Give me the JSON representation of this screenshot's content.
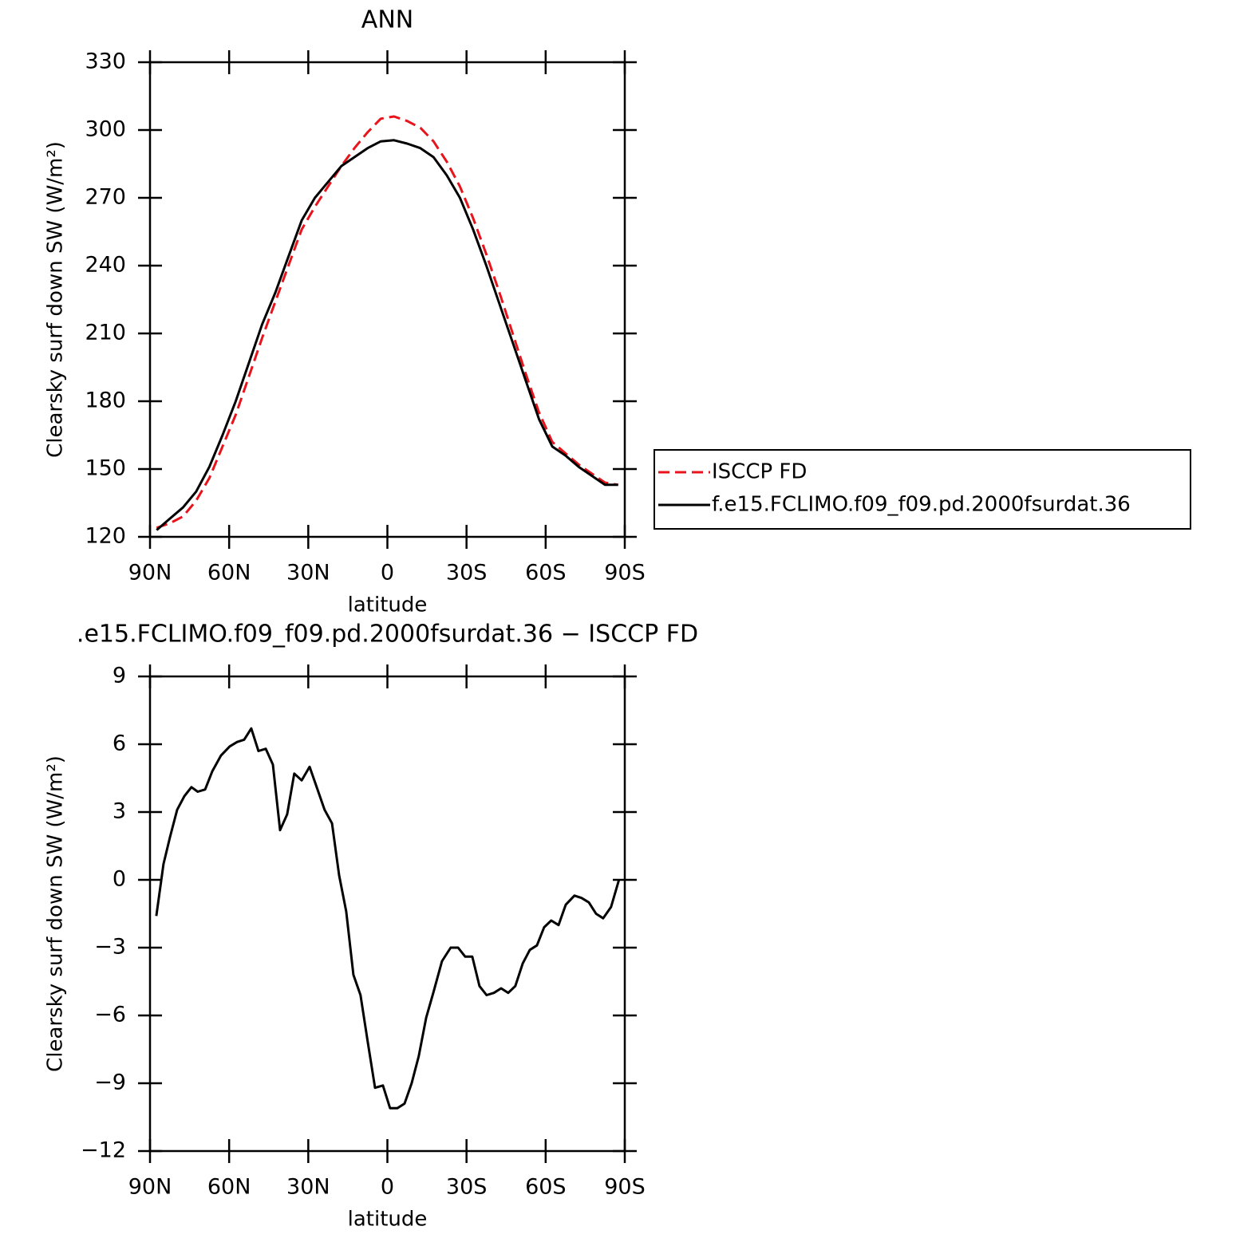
{
  "chart_data": [
    {
      "type": "line",
      "title": "ANN",
      "xlabel": "latitude",
      "ylabel": "Clearsky surf down SW (W/m²)",
      "x": [
        87.5,
        82.5,
        77.5,
        72.5,
        67.5,
        62.5,
        57.5,
        52.5,
        47.5,
        42.5,
        37.5,
        32.5,
        27.5,
        22.5,
        17.5,
        12.5,
        7.5,
        2.5,
        -2.5,
        -7.5,
        -12.5,
        -17.5,
        -22.5,
        -27.5,
        -32.5,
        -37.5,
        -42.5,
        -47.5,
        -52.5,
        -57.5,
        -62.5,
        -67.5,
        -72.5,
        -77.5,
        -82.5,
        -87.5
      ],
      "series": [
        {
          "name": "ISCCP FD",
          "color": "#e8141c",
          "dash": true,
          "values": [
            124,
            126,
            129,
            136,
            146,
            160,
            174,
            191,
            208,
            224,
            240,
            256,
            266,
            275,
            284,
            292,
            299,
            305,
            306,
            304,
            301,
            295,
            286,
            275,
            261,
            245,
            228,
            210,
            192,
            175,
            162,
            157,
            152,
            148,
            144,
            143
          ]
        },
        {
          "name": "f.e15.FCLIMO.f09_f09.pd.2000fsurdat.36",
          "color": "#000000",
          "dash": false,
          "values": [
            123,
            128,
            133,
            140,
            151,
            165,
            180,
            197,
            214,
            228,
            244,
            260,
            270,
            277,
            284,
            288,
            292,
            295,
            295.5,
            294,
            292,
            288,
            280,
            270,
            256,
            240,
            223,
            206,
            189,
            172,
            160,
            156,
            151,
            147,
            143,
            143
          ]
        }
      ],
      "xlim": [
        90,
        -90
      ],
      "xticks": [
        {
          "value": 90,
          "label": "90N"
        },
        {
          "value": 60,
          "label": "60N"
        },
        {
          "value": 30,
          "label": "30N"
        },
        0,
        {
          "value": -30,
          "label": "30S"
        },
        {
          "value": -60,
          "label": "60S"
        },
        {
          "value": -90,
          "label": "90S"
        }
      ],
      "ylim": [
        120,
        330
      ],
      "yticks": [
        120,
        150,
        180,
        210,
        240,
        270,
        300,
        330
      ],
      "legend": "right"
    },
    {
      "type": "line",
      "title": ".e15.FCLIMO.f09_f09.pd.2000fsurdat.36 − ISCCP FD",
      "xlabel": "latitude",
      "ylabel": "Clearsky surf down SW (W/m²)",
      "x": [
        87.6,
        84.9,
        82.4,
        79.7,
        77.0,
        74.3,
        71.9,
        69.1,
        66.4,
        63.1,
        59.8,
        57.0,
        54.3,
        51.6,
        48.9,
        46.1,
        43.4,
        40.7,
        38.0,
        35.3,
        32.5,
        29.5,
        26.8,
        23.8,
        21.0,
        18.3,
        15.6,
        12.9,
        10.2,
        7.4,
        4.7,
        1.7,
        -1.0,
        -3.8,
        -6.5,
        -9.2,
        -11.9,
        -14.7,
        -17.4,
        -20.7,
        -24.0,
        -26.8,
        -29.5,
        -32.2,
        -34.9,
        -37.6,
        -40.4,
        -43.1,
        -45.8,
        -48.5,
        -51.3,
        -54.0,
        -56.7,
        -59.4,
        -62.1,
        -64.9,
        -67.6,
        -70.9,
        -73.6,
        -76.4,
        -79.1,
        -81.8,
        -84.8,
        -87.8
      ],
      "series": [
        {
          "color": "#000000",
          "dash": false,
          "values": [
            -1.6,
            0.7,
            1.9,
            3.1,
            3.7,
            4.1,
            3.9,
            4.0,
            4.8,
            5.5,
            5.9,
            6.1,
            6.2,
            6.7,
            5.7,
            5.8,
            5.1,
            2.2,
            2.9,
            4.7,
            4.4,
            5.0,
            4.1,
            3.1,
            2.5,
            0.2,
            -1.4,
            -4.2,
            -5.1,
            -7.2,
            -9.2,
            -9.1,
            -10.1,
            -10.1,
            -9.9,
            -9.0,
            -7.8,
            -6.1,
            -5.0,
            -3.6,
            -3.0,
            -3.0,
            -3.4,
            -3.4,
            -4.7,
            -5.1,
            -5.0,
            -4.8,
            -5.0,
            -4.7,
            -3.7,
            -3.1,
            -2.9,
            -2.1,
            -1.8,
            -2.0,
            -1.1,
            -0.7,
            -0.8,
            -1.0,
            -1.5,
            -1.7,
            -1.2,
            0.0
          ]
        }
      ],
      "xlim": [
        90,
        -90
      ],
      "xticks": [
        {
          "value": 90,
          "label": "90N"
        },
        {
          "value": 60,
          "label": "60N"
        },
        {
          "value": 30,
          "label": "30N"
        },
        0,
        {
          "value": -30,
          "label": "30S"
        },
        {
          "value": -60,
          "label": "60S"
        },
        {
          "value": -90,
          "label": "90S"
        }
      ],
      "ylim": [
        -12,
        9
      ],
      "yticks": [
        {
          "value": -12,
          "label": "−12"
        },
        {
          "value": -9,
          "label": "−9"
        },
        {
          "value": -6,
          "label": "−6"
        },
        {
          "value": -3,
          "label": "−3"
        },
        0,
        3,
        6,
        9
      ]
    }
  ]
}
